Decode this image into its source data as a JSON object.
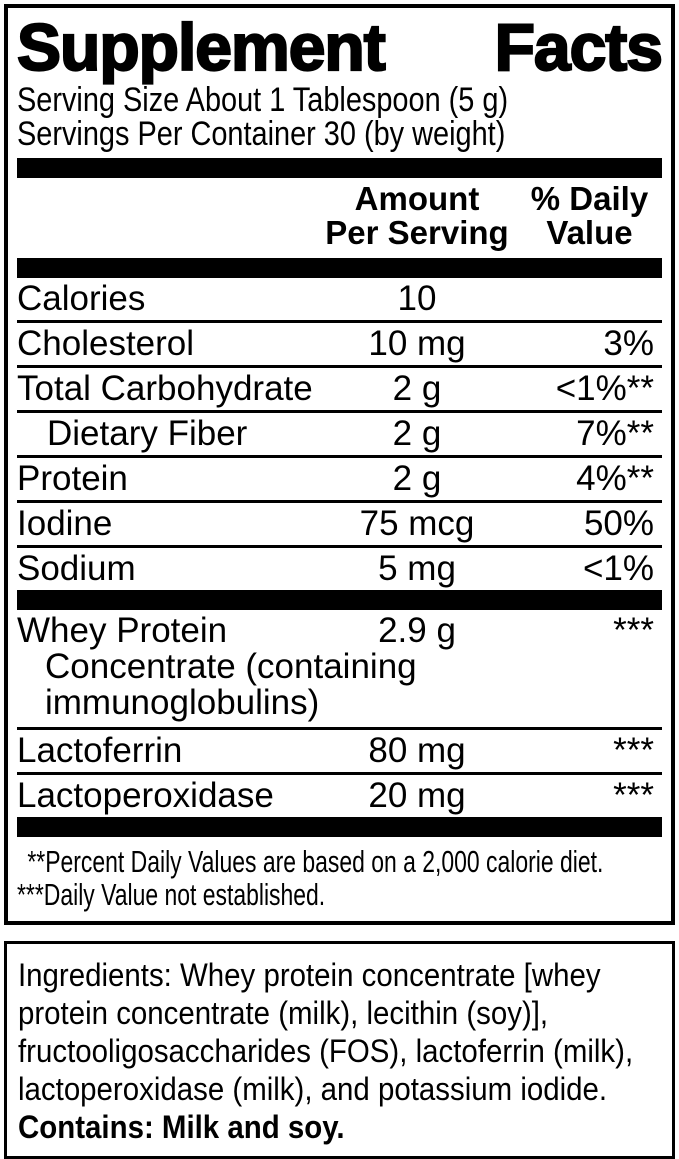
{
  "title": "Supplement Facts",
  "serving": {
    "size_line": "Serving Size About 1 Tablespoon (5 g)",
    "per_container_line": "Servings Per Container 30 (by weight)"
  },
  "columns": {
    "amount_line1": "Amount",
    "amount_line2": "Per Serving",
    "dv_line1": "% Daily",
    "dv_line2": "Value"
  },
  "rows": [
    {
      "name": "Calories",
      "amount": "10",
      "dv": ""
    },
    {
      "name": "Cholesterol",
      "amount": "10 mg",
      "dv": "3%"
    },
    {
      "name": "Total Carbohydrate",
      "amount": "2 g",
      "dv": "<1%**"
    },
    {
      "name": "Dietary Fiber",
      "amount": "2 g",
      "dv": "7%**",
      "indent": true
    },
    {
      "name": "Protein",
      "amount": "2 g",
      "dv": "4%**"
    },
    {
      "name": "Iodine",
      "amount": "75 mcg",
      "dv": "50%"
    },
    {
      "name": "Sodium",
      "amount": "5 mg",
      "dv": "<1%"
    }
  ],
  "supplement_rows": [
    {
      "name": "Whey Protein",
      "name_line2": "Concentrate (containing immunoglobulins)",
      "amount": "2.9 g",
      "dv": "***"
    },
    {
      "name": "Lactoferrin",
      "amount": "80 mg",
      "dv": "***"
    },
    {
      "name": "Lactoperoxidase",
      "amount": "20 mg",
      "dv": "***"
    }
  ],
  "footnotes": [
    "**Percent Daily Values are based on a 2,000 calorie diet.",
    "***Daily Value not established."
  ],
  "ingredients": {
    "text": "Ingredients: Whey protein concentrate [whey protein concentrate (milk), lecithin (soy)], fructooligosaccharides (FOS), lactoferrin (milk), lactoperoxidase (milk), and potassium iodide.",
    "contains": "Contains: Milk and soy."
  },
  "colors": {
    "ink": "#000000",
    "paper": "#ffffff"
  }
}
